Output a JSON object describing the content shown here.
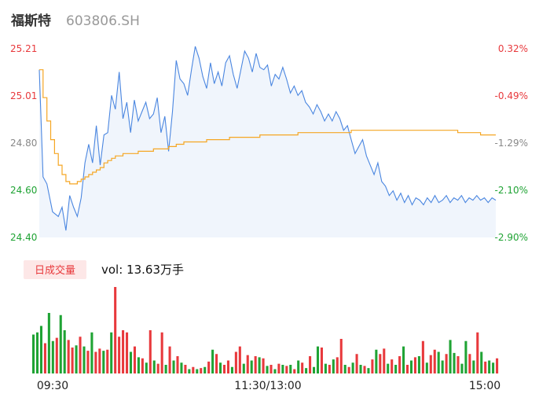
{
  "header": {
    "name": "福斯特",
    "code": "603806.SH"
  },
  "colors": {
    "up": "#e8393c",
    "down": "#1fa334",
    "neutral": "#888888",
    "price_line": "#4a86e0",
    "price_fill": "#e4edf9",
    "avg_line": "#f5a623",
    "title": "#333333",
    "code": "#999999",
    "badge_bg": "#fde7e7"
  },
  "chart_data": [
    {
      "type": "line",
      "title": "",
      "y_left_ticks": [
        "25.21",
        "25.01",
        "24.80",
        "24.60",
        "24.40"
      ],
      "y_right_ticks": [
        "0.32%",
        "-0.49%",
        "-1.29%",
        "-2.10%",
        "-2.90%"
      ],
      "ylim": [
        24.4,
        25.21
      ],
      "x_labels": [
        "09:30",
        "11:30/13:00",
        "15:00"
      ],
      "series": [
        {
          "style": "price",
          "t": [
            0,
            2,
            4,
            7,
            10,
            12,
            14,
            16,
            18,
            20,
            22,
            24,
            26,
            28,
            30,
            32,
            34,
            36,
            38,
            40,
            42,
            44,
            46,
            48,
            50,
            52,
            54,
            56,
            58,
            60,
            62,
            64,
            66,
            68,
            70,
            72,
            74,
            76,
            78,
            80,
            82,
            84,
            86,
            88,
            90,
            92,
            94,
            96,
            98,
            100,
            102,
            104,
            106,
            108,
            110,
            112,
            114,
            116,
            118,
            120,
            122,
            124,
            126,
            128,
            130,
            132,
            134,
            136,
            138,
            140,
            142,
            144,
            146,
            148,
            150,
            152,
            154,
            156,
            158,
            160,
            162,
            164,
            166,
            168,
            170,
            172,
            174,
            176,
            178,
            180,
            182,
            184,
            186,
            188,
            190,
            192,
            194,
            196,
            198,
            200,
            202,
            204,
            206,
            208,
            210,
            212,
            214,
            216,
            218,
            220,
            222,
            224,
            226,
            228,
            230,
            232,
            234,
            236,
            238,
            240
          ],
          "values": [
            25.12,
            24.66,
            24.63,
            24.51,
            24.49,
            24.53,
            24.43,
            24.58,
            24.53,
            24.49,
            24.57,
            24.72,
            24.8,
            24.72,
            24.88,
            24.71,
            24.84,
            24.85,
            25.01,
            24.95,
            25.11,
            24.91,
            24.98,
            24.85,
            24.99,
            24.9,
            24.94,
            24.98,
            24.91,
            24.93,
            25.0,
            24.85,
            24.92,
            24.77,
            24.94,
            25.16,
            25.08,
            25.06,
            25.01,
            25.12,
            25.22,
            25.17,
            25.09,
            25.04,
            25.15,
            25.06,
            25.11,
            25.05,
            25.15,
            25.18,
            25.1,
            25.04,
            25.12,
            25.2,
            25.17,
            25.11,
            25.19,
            25.13,
            25.12,
            25.14,
            25.05,
            25.1,
            25.08,
            25.13,
            25.08,
            25.02,
            25.05,
            25.01,
            25.03,
            24.98,
            24.96,
            24.93,
            24.97,
            24.94,
            24.9,
            24.93,
            24.9,
            24.94,
            24.91,
            24.86,
            24.88,
            24.82,
            24.76,
            24.79,
            24.82,
            24.75,
            24.71,
            24.67,
            24.72,
            24.64,
            24.62,
            24.58,
            24.6,
            24.56,
            24.59,
            24.55,
            24.58,
            24.54,
            24.57,
            24.56,
            24.54,
            24.57,
            24.55,
            24.58,
            24.55,
            24.56,
            24.58,
            24.55,
            24.57,
            24.56,
            24.58,
            24.55,
            24.57,
            24.56,
            24.58,
            24.56,
            24.57,
            24.55,
            24.57,
            24.56
          ]
        },
        {
          "style": "average",
          "t": [
            0,
            2,
            4,
            6,
            8,
            10,
            12,
            14,
            16,
            18,
            20,
            22,
            24,
            26,
            28,
            30,
            32,
            34,
            36,
            38,
            40,
            44,
            48,
            52,
            56,
            60,
            64,
            68,
            72,
            76,
            80,
            84,
            88,
            92,
            96,
            100,
            104,
            108,
            112,
            116,
            120,
            124,
            128,
            132,
            136,
            140,
            144,
            148,
            152,
            156,
            160,
            164,
            168,
            172,
            176,
            180,
            184,
            188,
            192,
            196,
            200,
            204,
            208,
            212,
            216,
            220,
            224,
            228,
            232,
            236,
            240
          ],
          "values": [
            25.12,
            25.0,
            24.9,
            24.82,
            24.76,
            24.71,
            24.67,
            24.64,
            24.63,
            24.63,
            24.64,
            24.65,
            24.66,
            24.67,
            24.68,
            24.69,
            24.7,
            24.72,
            24.73,
            24.74,
            24.75,
            24.76,
            24.76,
            24.77,
            24.77,
            24.78,
            24.78,
            24.79,
            24.8,
            24.81,
            24.81,
            24.81,
            24.82,
            24.82,
            24.82,
            24.83,
            24.83,
            24.83,
            24.83,
            24.84,
            24.84,
            24.84,
            24.84,
            24.84,
            24.85,
            24.85,
            24.85,
            24.85,
            24.85,
            24.85,
            24.85,
            24.86,
            24.86,
            24.86,
            24.86,
            24.86,
            24.86,
            24.86,
            24.86,
            24.86,
            24.86,
            24.86,
            24.86,
            24.86,
            24.86,
            24.85,
            24.85,
            24.85,
            24.84,
            24.84,
            24.84
          ]
        }
      ]
    },
    {
      "type": "bar",
      "badge": "日成交量",
      "vol_label": "vol: 13.63万手",
      "bar_count": 120,
      "values": [
        36,
        38,
        44,
        28,
        56,
        30,
        33,
        54,
        40,
        31,
        24,
        26,
        34,
        25,
        21,
        38,
        20,
        23,
        21,
        22,
        38,
        80,
        34,
        40,
        38,
        20,
        25,
        15,
        14,
        10,
        40,
        12,
        9,
        38,
        8,
        25,
        12,
        16,
        10,
        8,
        4,
        6,
        4,
        5,
        6,
        11,
        22,
        18,
        10,
        8,
        12,
        6,
        20,
        25,
        9,
        17,
        12,
        16,
        15,
        14,
        7,
        8,
        4,
        9,
        8,
        7,
        8,
        4,
        12,
        10,
        5,
        16,
        6,
        25,
        24,
        9,
        8,
        13,
        15,
        32,
        8,
        6,
        10,
        18,
        8,
        7,
        5,
        13,
        22,
        18,
        23,
        9,
        13,
        8,
        16,
        25,
        8,
        12,
        15,
        16,
        30,
        10,
        17,
        22,
        20,
        12,
        18,
        31,
        19,
        16,
        9,
        30,
        18,
        12,
        38,
        20,
        11,
        12,
        10,
        14
      ],
      "directions": [
        "d",
        "d",
        "d",
        "u",
        "d",
        "d",
        "u",
        "d",
        "d",
        "u",
        "u",
        "d",
        "u",
        "d",
        "u",
        "d",
        "u",
        "u",
        "d",
        "u",
        "d",
        "u",
        "u",
        "u",
        "u",
        "d",
        "u",
        "d",
        "u",
        "d",
        "u",
        "d",
        "u",
        "u",
        "d",
        "u",
        "d",
        "u",
        "d",
        "u",
        "d",
        "u",
        "d",
        "u",
        "d",
        "u",
        "d",
        "u",
        "d",
        "u",
        "u",
        "d",
        "u",
        "u",
        "d",
        "u",
        "d",
        "u",
        "d",
        "u",
        "d",
        "u",
        "d",
        "u",
        "d",
        "u",
        "d",
        "u",
        "d",
        "u",
        "d",
        "u",
        "d",
        "d",
        "u",
        "d",
        "u",
        "d",
        "u",
        "u",
        "d",
        "u",
        "d",
        "u",
        "d",
        "u",
        "d",
        "u",
        "d",
        "u",
        "u",
        "d",
        "u",
        "d",
        "u",
        "d",
        "u",
        "d",
        "u",
        "d",
        "u",
        "d",
        "u",
        "u",
        "d",
        "d",
        "u",
        "d",
        "d",
        "u",
        "d",
        "d",
        "u",
        "d",
        "u",
        "d",
        "u",
        "d",
        "d",
        "u"
      ]
    }
  ]
}
